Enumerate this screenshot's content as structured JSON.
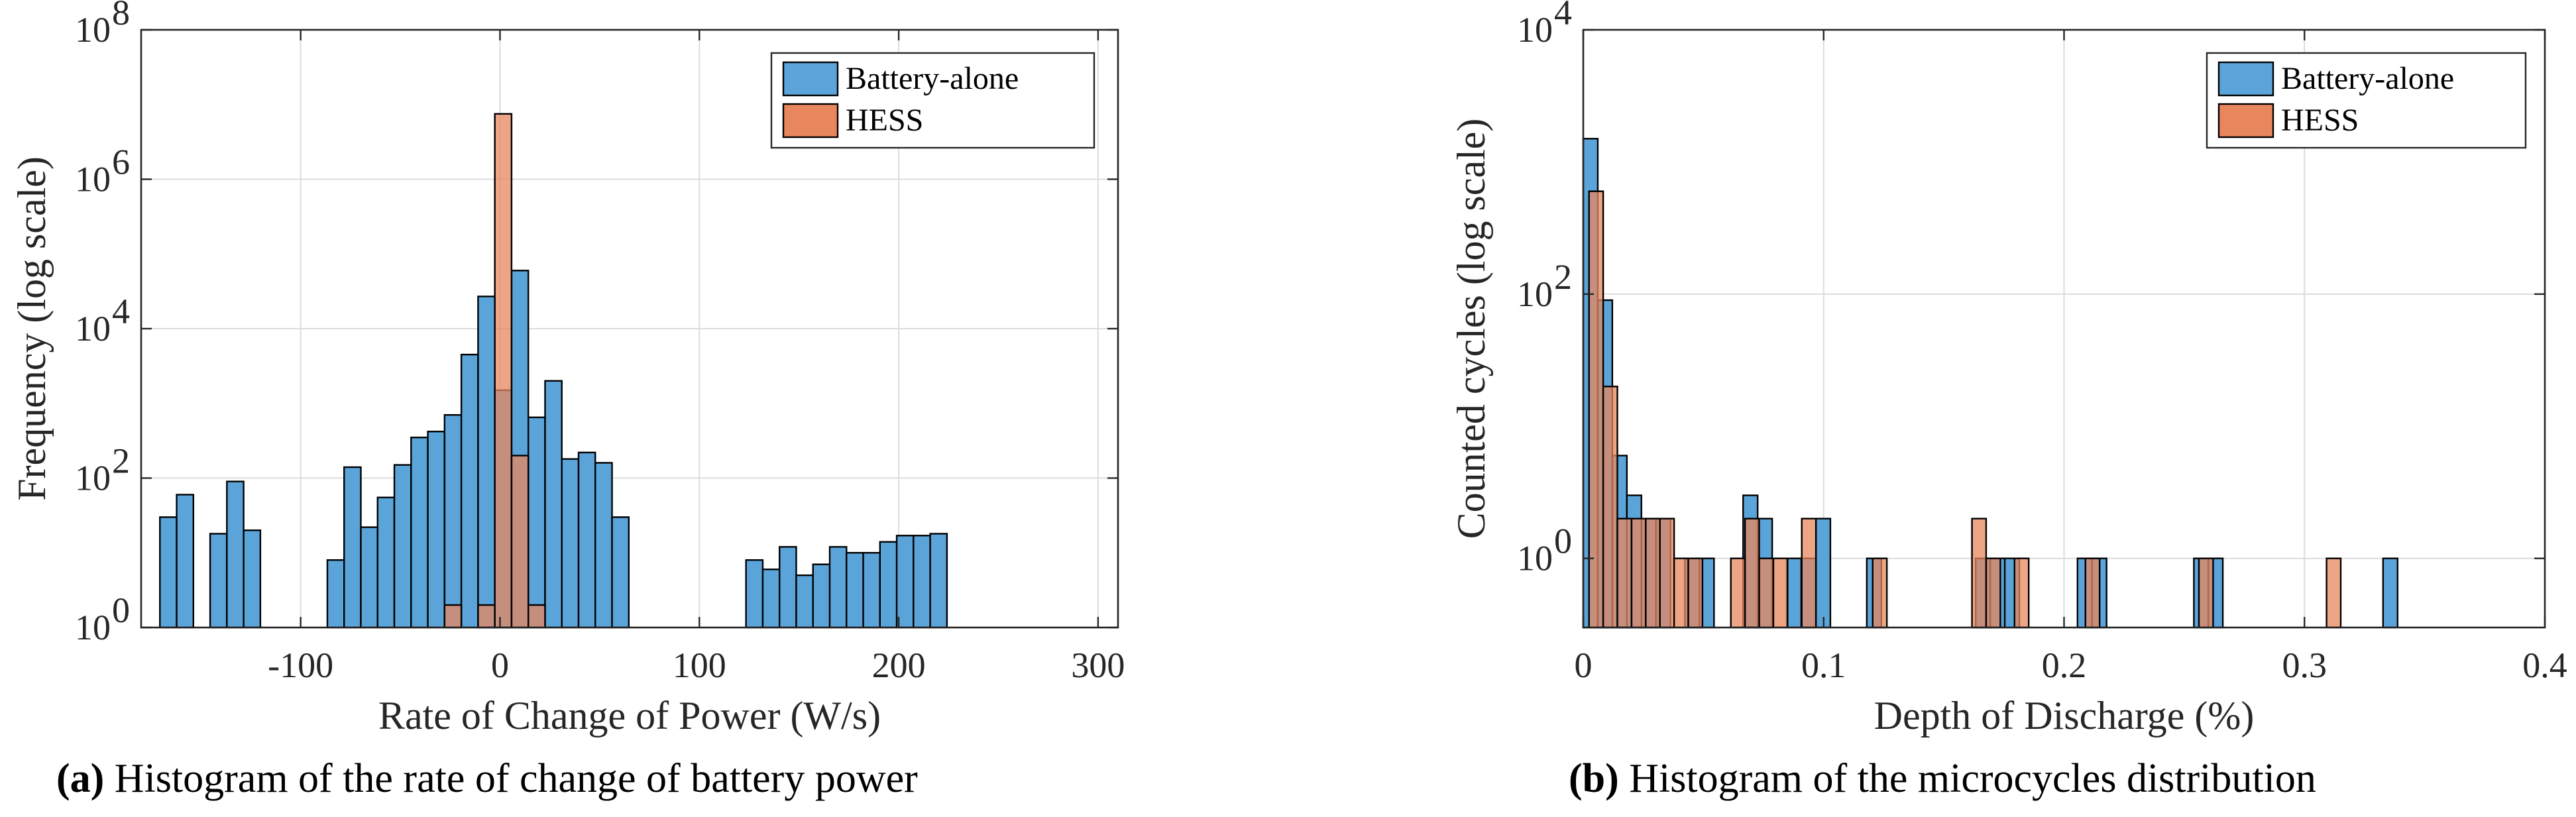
{
  "chart_data": [
    {
      "type": "bar",
      "subtype": "overlaid-histogram",
      "title": "",
      "xlabel": "Rate of Change of Power (W/s)",
      "ylabel": "Frequency (log scale)",
      "yscale": "log",
      "xlim": [
        -180,
        310
      ],
      "ylim": [
        1,
        100000000
      ],
      "xticks": [
        -100,
        0,
        100,
        200,
        300
      ],
      "xtick_labels": [
        "-100",
        "0",
        "100",
        "200",
        "300"
      ],
      "yticks": [
        1,
        100,
        10000,
        1000000,
        100000000
      ],
      "ytick_labels": [
        [
          "10",
          "0"
        ],
        [
          "10",
          "2"
        ],
        [
          "10",
          "4"
        ],
        [
          "10",
          "6"
        ],
        [
          "10",
          "8"
        ]
      ],
      "grid": true,
      "bin_width": 8.4,
      "legend_position": "top-right",
      "caption_label": "(a)",
      "caption_text": "Histogram of the rate of change of battery power",
      "series": [
        {
          "name": "Battery-alone",
          "color": "#5ba4d9",
          "bin_starts": [
            -170.6,
            -162.2,
            -153.8,
            -145.4,
            -137.0,
            -128.6,
            -86.6,
            -78.2,
            -69.8,
            -61.4,
            -53.0,
            -44.6,
            -36.2,
            -27.8,
            -19.4,
            -11.0,
            -2.6,
            5.8,
            14.2,
            22.6,
            31.0,
            39.4,
            47.8,
            56.2,
            123.4,
            131.8,
            140.2,
            148.6,
            157.0,
            165.4,
            173.8,
            182.2,
            190.6,
            199.0,
            207.4,
            215.8
          ],
          "values": [
            30,
            60,
            1,
            18,
            90,
            20,
            8,
            140,
            22,
            55,
            150,
            350,
            420,
            700,
            4500,
            27000,
            1500,
            60000,
            650,
            2000,
            180,
            220,
            160,
            30,
            8,
            6,
            12,
            5,
            7,
            12,
            10,
            10,
            14,
            17,
            17,
            18
          ]
        },
        {
          "name": "HESS",
          "color": "#e8875e",
          "bin_starts": [
            -27.8,
            -11.0,
            -2.6,
            5.8,
            14.2
          ],
          "values": [
            2,
            2,
            7500000,
            200,
            2
          ]
        }
      ]
    },
    {
      "type": "bar",
      "subtype": "overlaid-histogram",
      "title": "",
      "xlabel": "Depth of Discharge (%)",
      "ylabel": "Counted cycles (log scale)",
      "yscale": "log",
      "xlim": [
        0,
        0.4
      ],
      "ylim": [
        0.3,
        10000
      ],
      "xticks": [
        0,
        0.1,
        0.2,
        0.3,
        0.4
      ],
      "xtick_labels": [
        "0",
        "0.1",
        "0.2",
        "0.3",
        "0.4"
      ],
      "yticks": [
        1,
        100,
        10000
      ],
      "ytick_labels": [
        [
          "10",
          "0"
        ],
        [
          "10",
          "2"
        ],
        [
          "10",
          "4"
        ]
      ],
      "grid": true,
      "legend_position": "top-right",
      "caption_label": "(b)",
      "caption_text": "Histogram of the microcycles distribution",
      "series": [
        {
          "name": "Battery-alone",
          "color": "#5ba4d9",
          "bin_width": 0.00605,
          "bin_starts": [
            0.0,
            0.00605,
            0.0121,
            0.01815,
            0.0242,
            0.03025,
            0.0423,
            0.04835,
            0.0665,
            0.07255,
            0.08465,
            0.0907,
            0.09675,
            0.11795,
            0.16325,
            0.1693,
            0.17535,
            0.2056,
            0.21165,
            0.254,
            0.26,
            0.3327
          ],
          "values": [
            1500,
            90,
            6,
            3,
            2,
            2,
            1,
            1,
            3,
            2,
            1,
            1,
            2,
            1,
            1,
            1,
            1,
            1,
            1,
            1,
            1,
            1
          ]
        },
        {
          "name": "HESS",
          "color": "#e8875e",
          "bin_width": 0.0059,
          "bin_starts": [
            0.0024,
            0.0083,
            0.0142,
            0.0201,
            0.026,
            0.0319,
            0.0378,
            0.0437,
            0.0614,
            0.0673,
            0.0732,
            0.0791,
            0.0909,
            0.1204,
            0.1617,
            0.1676,
            0.1794,
            0.2089,
            0.2561,
            0.3092
          ],
          "values": [
            600,
            20,
            2,
            2,
            2,
            2,
            1,
            1,
            1,
            2,
            1,
            1,
            2,
            1,
            2,
            1,
            1,
            1,
            1,
            1
          ]
        }
      ]
    }
  ]
}
